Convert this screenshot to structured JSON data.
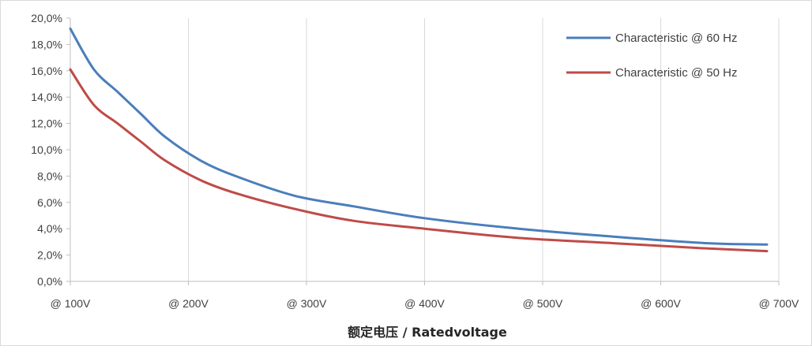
{
  "chart_data": {
    "type": "line",
    "title": "",
    "xlabel": "额定电压 / Ratedvoltage",
    "ylabel": "",
    "xlim": [
      100,
      700
    ],
    "ylim": [
      0,
      20
    ],
    "x_ticks": [
      100,
      200,
      300,
      400,
      500,
      600,
      700
    ],
    "x_tick_labels": [
      "@ 100V",
      "@ 200V",
      "@ 300V",
      "@ 400V",
      "@ 500V",
      "@ 600V",
      "@ 700V"
    ],
    "y_ticks": [
      0,
      2,
      4,
      6,
      8,
      10,
      12,
      14,
      16,
      18,
      20
    ],
    "y_tick_labels": [
      "0,0%",
      "2,0%",
      "4,0%",
      "6,0%",
      "8,0%",
      "10,0%",
      "12,0%",
      "14,0%",
      "16,0%",
      "18,0%",
      "20,0%"
    ],
    "grid": "vertical",
    "legend_position": "top-right",
    "series": [
      {
        "name": "Characteristic @ 60 Hz",
        "color": "#4a7ebb",
        "x": [
          100,
          120,
          140,
          160,
          180,
          210,
          240,
          290,
          340,
          400,
          480,
          560,
          640,
          690
        ],
        "y": [
          19.2,
          16.1,
          14.4,
          12.7,
          11.0,
          9.2,
          8.0,
          6.5,
          5.7,
          4.8,
          4.0,
          3.4,
          2.9,
          2.8
        ]
      },
      {
        "name": "Characteristic @ 50 Hz",
        "color": "#be4b48",
        "x": [
          100,
          120,
          140,
          160,
          180,
          210,
          240,
          290,
          340,
          400,
          480,
          560,
          640,
          690
        ],
        "y": [
          16.1,
          13.4,
          12.0,
          10.6,
          9.2,
          7.7,
          6.7,
          5.5,
          4.6,
          4.0,
          3.3,
          2.9,
          2.5,
          2.3
        ]
      }
    ]
  }
}
